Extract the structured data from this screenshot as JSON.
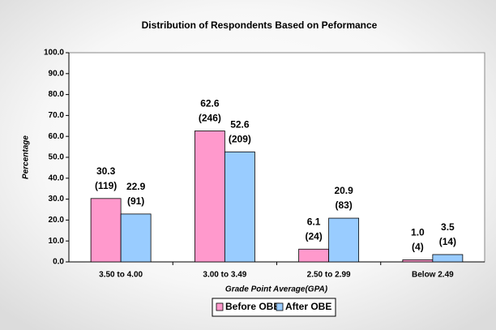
{
  "chart_data": {
    "type": "bar",
    "title": "Distribution of Respondents Based on Peformance",
    "x_label": "Grade Point Average(GPA)",
    "y_label": "Percentage",
    "categories": [
      "3.50 to 4.00",
      "3.00 to 3.49",
      "2.50 to 2.99",
      "Below 2.49"
    ],
    "series": [
      {
        "name": "Before OBE",
        "color": "#ff99cc",
        "values": [
          30.3,
          62.6,
          6.1,
          1.0
        ],
        "value_labels": [
          "30.3",
          "62.6",
          "6.1",
          "1.0"
        ],
        "count_labels": [
          "(119)",
          "(246)",
          "(24)",
          "(4)"
        ]
      },
      {
        "name": "After OBE",
        "color": "#99ccff",
        "values": [
          22.9,
          52.6,
          20.9,
          3.5
        ],
        "value_labels": [
          "22.9",
          "52.6",
          "20.9",
          "3.5"
        ],
        "count_labels": [
          "(91)",
          "(209)",
          "(83)",
          "(14)"
        ]
      }
    ],
    "ylim": [
      0,
      100
    ],
    "yticks": [
      {
        "value": 0,
        "label": "0.0"
      },
      {
        "value": 10,
        "label": "10.0"
      },
      {
        "value": 20,
        "label": "20.0"
      },
      {
        "value": 30,
        "label": "30.0"
      },
      {
        "value": 40,
        "label": "40.0"
      },
      {
        "value": 50,
        "label": "50.0"
      },
      {
        "value": 60,
        "label": "60.0"
      },
      {
        "value": 70,
        "label": "70.0"
      },
      {
        "value": 80,
        "label": "80.0"
      },
      {
        "value": 90,
        "label": "90.0"
      },
      {
        "value": 100,
        "label": "100.0"
      }
    ],
    "legend": "bottom"
  }
}
